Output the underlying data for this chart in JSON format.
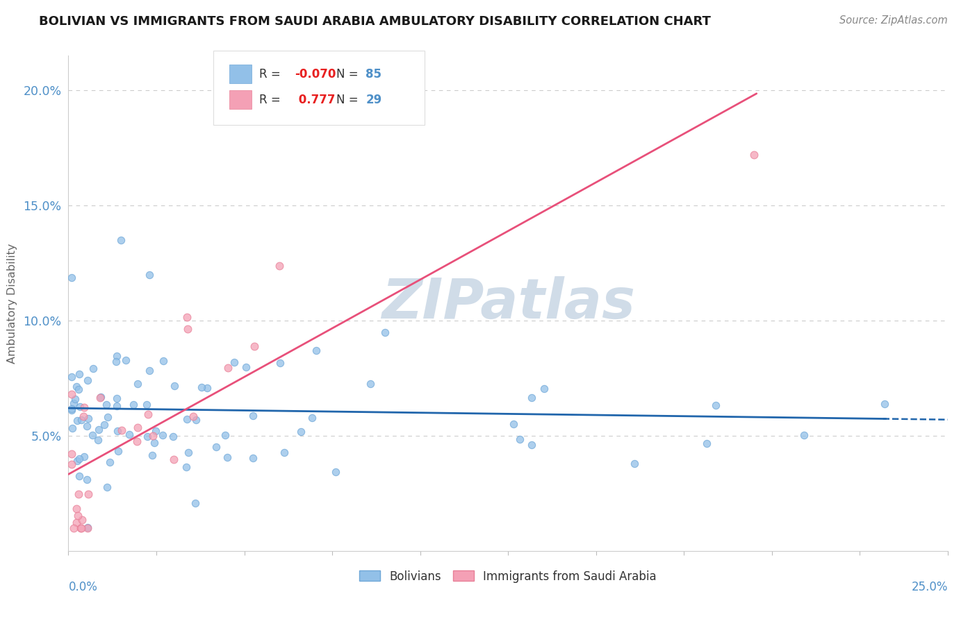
{
  "title": "BOLIVIAN VS IMMIGRANTS FROM SAUDI ARABIA AMBULATORY DISABILITY CORRELATION CHART",
  "source": "Source: ZipAtlas.com",
  "ylabel": "Ambulatory Disability",
  "y_ticks": [
    0.05,
    0.1,
    0.15,
    0.2
  ],
  "y_tick_labels": [
    "5.0%",
    "10.0%",
    "15.0%",
    "20.0%"
  ],
  "xlim": [
    0.0,
    0.25
  ],
  "ylim": [
    0.0,
    0.215
  ],
  "blue_R": -0.07,
  "blue_N": 85,
  "pink_R": 0.777,
  "pink_N": 29,
  "blue_color": "#92C0E8",
  "pink_color": "#F4A0B5",
  "blue_edge_color": "#70A8D8",
  "pink_edge_color": "#E88098",
  "blue_line_color": "#2166AC",
  "pink_line_color": "#E8507A",
  "title_color": "#1A1A1A",
  "axis_label_color": "#4F90C8",
  "watermark_color": "#D0DCE8",
  "legend_R_color": "#E82020",
  "legend_N_color": "#4F90C8",
  "grid_color": "#CCCCCC"
}
